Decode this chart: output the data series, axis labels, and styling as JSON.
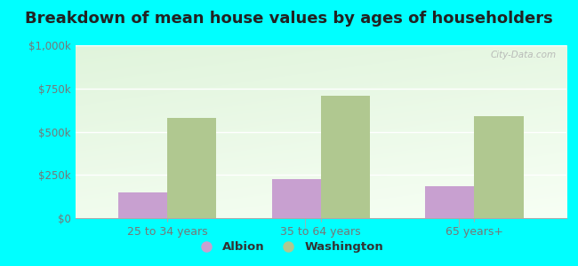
{
  "title": "Breakdown of mean house values by ages of householders",
  "categories": [
    "25 to 34 years",
    "35 to 64 years",
    "65 years+"
  ],
  "albion_values": [
    150000,
    225000,
    185000
  ],
  "washington_values": [
    580000,
    710000,
    590000
  ],
  "ylim": [
    0,
    1000000
  ],
  "yticks": [
    0,
    250000,
    500000,
    750000,
    1000000
  ],
  "ytick_labels": [
    "$0",
    "$250k",
    "$500k",
    "$750k",
    "$1,000k"
  ],
  "albion_color": "#c8a0d0",
  "washington_color": "#b0c890",
  "background_color": "#00ffff",
  "legend_albion": "Albion",
  "legend_washington": "Washington",
  "bar_width": 0.32,
  "title_fontsize": 13,
  "tick_fontsize": 8.5,
  "label_fontsize": 9,
  "watermark": "City-Data.com"
}
